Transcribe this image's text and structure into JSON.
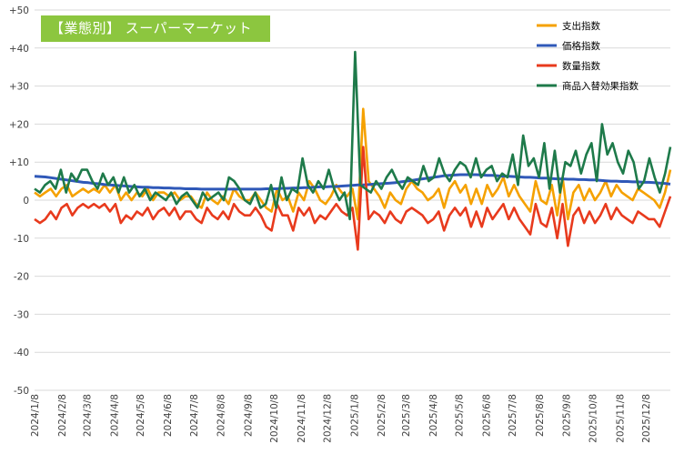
{
  "title": "【業態別】 スーパーマーケット",
  "chart_data": {
    "type": "line",
    "title": "【業態別】 スーパーマーケット",
    "ylim": [
      -50,
      50
    ],
    "y_ticks": [
      {
        "value": 50,
        "label": "+50"
      },
      {
        "value": 40,
        "label": "+40"
      },
      {
        "value": 30,
        "label": "+30"
      },
      {
        "value": 20,
        "label": "+20"
      },
      {
        "value": 10,
        "label": "+10"
      },
      {
        "value": 0,
        "label": "0"
      },
      {
        "value": -10,
        "label": "-10"
      },
      {
        "value": -20,
        "label": "-20"
      },
      {
        "value": -30,
        "label": "-30"
      },
      {
        "value": -40,
        "label": "-40"
      },
      {
        "value": -50,
        "label": "-50"
      }
    ],
    "x_tick_labels": [
      "2024/1/8",
      "2024/2/8",
      "2024/3/8",
      "2024/4/8",
      "2024/5/8",
      "2024/6/8",
      "2024/7/8",
      "2024/8/8",
      "2024/9/8",
      "2024/10/8",
      "2024/11/8",
      "2024/12/8",
      "2025/1/8",
      "2025/2/8",
      "2025/3/8",
      "2025/4/8",
      "2025/5/8",
      "2025/6/8",
      "2025/7/8",
      "2025/8/8",
      "2025/9/8",
      "2025/10/8",
      "2025/11/8",
      "2025/12/8"
    ],
    "x_start": "2024-01-08",
    "x_end": "2026-01-05",
    "grid": true,
    "legend_position": "top-right",
    "series": [
      {
        "name": "支出指数",
        "color": "#f5a100",
        "values": [
          2,
          1,
          2,
          3,
          1,
          3,
          4,
          1,
          2,
          3,
          2,
          3,
          2,
          4,
          2,
          4,
          0,
          2,
          0,
          2,
          1,
          3,
          0,
          2,
          2,
          1,
          2,
          0,
          1,
          1,
          -1,
          -2,
          2,
          0,
          -1,
          1,
          -1,
          3,
          1,
          0,
          0,
          2,
          0,
          -2,
          -3,
          3,
          0,
          1,
          -3,
          2,
          0,
          5,
          3,
          0,
          -1,
          1,
          4,
          2,
          1,
          3,
          -5,
          24,
          5,
          3,
          1,
          -2,
          2,
          0,
          -1,
          3,
          5,
          3,
          2,
          0,
          1,
          3,
          -2,
          3,
          5,
          2,
          4,
          -1,
          3,
          -1,
          4,
          1,
          3,
          6,
          1,
          4,
          1,
          -1,
          -3,
          5,
          0,
          -1,
          4,
          -4,
          6,
          -5,
          2,
          4,
          0,
          3,
          0,
          2,
          5,
          1,
          4,
          2,
          1,
          0,
          3,
          2,
          1,
          0,
          -2,
          2,
          8
        ]
      },
      {
        "name": "価格指数",
        "color": "#2f58b8",
        "values": [
          6.3,
          6.2,
          6.1,
          5.9,
          5.7,
          5.5,
          5.3,
          5.1,
          4.9,
          4.7,
          4.6,
          4.4,
          4.3,
          4.1,
          4.0,
          3.9,
          3.8,
          3.7,
          3.6,
          3.5,
          3.4,
          3.4,
          3.3,
          3.3,
          3.2,
          3.2,
          3.1,
          3.1,
          3.0,
          3.0,
          3.0,
          2.9,
          2.9,
          2.9,
          2.9,
          2.9,
          2.9,
          2.9,
          2.9,
          2.9,
          2.9,
          2.9,
          2.9,
          3.0,
          3.0,
          3.0,
          3.1,
          3.1,
          3.2,
          3.2,
          3.3,
          3.3,
          3.4,
          3.5,
          3.5,
          3.6,
          3.6,
          3.7,
          3.8,
          3.9,
          4.0,
          4.0,
          4.1,
          4.2,
          4.3,
          4.4,
          4.5,
          4.6,
          4.8,
          5.0,
          5.2,
          5.4,
          5.6,
          5.8,
          6.0,
          6.2,
          6.4,
          6.5,
          6.6,
          6.7,
          6.7,
          6.7,
          6.7,
          6.6,
          6.5,
          6.5,
          6.4,
          6.3,
          6.3,
          6.2,
          6.1,
          6.0,
          6.0,
          5.9,
          5.8,
          5.8,
          5.7,
          5.6,
          5.6,
          5.5,
          5.5,
          5.4,
          5.4,
          5.3,
          5.3,
          5.2,
          5.1,
          5.0,
          5.0,
          4.9,
          4.9,
          4.8,
          4.8,
          4.7,
          4.7,
          4.6,
          4.5,
          4.4,
          4.2
        ]
      },
      {
        "name": "数量指数",
        "color": "#e83a1d",
        "values": [
          -5,
          -6,
          -5,
          -3,
          -5,
          -2,
          -1,
          -4,
          -2,
          -1,
          -2,
          -1,
          -2,
          -1,
          -3,
          -1,
          -6,
          -4,
          -5,
          -3,
          -4,
          -2,
          -5,
          -3,
          -2,
          -4,
          -2,
          -5,
          -3,
          -3,
          -5,
          -6,
          -2,
          -4,
          -5,
          -3,
          -5,
          -1,
          -3,
          -4,
          -4,
          -2,
          -4,
          -7,
          -8,
          -1,
          -4,
          -4,
          -8,
          -2,
          -4,
          -2,
          -6,
          -4,
          -5,
          -3,
          -1,
          -3,
          -4,
          -2,
          -13,
          14,
          -5,
          -3,
          -4,
          -6,
          -3,
          -5,
          -6,
          -3,
          -2,
          -3,
          -4,
          -6,
          -5,
          -3,
          -8,
          -4,
          -2,
          -4,
          -2,
          -7,
          -3,
          -7,
          -2,
          -5,
          -3,
          -1,
          -5,
          -2,
          -5,
          -7,
          -9,
          -1,
          -6,
          -7,
          -2,
          -10,
          -1,
          -12,
          -4,
          -2,
          -6,
          -3,
          -6,
          -4,
          -1,
          -5,
          -2,
          -4,
          -5,
          -6,
          -3,
          -4,
          -5,
          -5,
          -7,
          -3,
          1
        ]
      },
      {
        "name": "商品入替効果指数",
        "color": "#1e7a4a",
        "values": [
          3,
          2,
          4,
          5,
          3,
          8,
          2,
          7,
          5,
          8,
          8,
          5,
          3,
          7,
          4,
          6,
          2,
          6,
          2,
          4,
          1,
          3,
          0,
          2,
          1,
          0,
          2,
          -1,
          1,
          2,
          0,
          -2,
          2,
          0,
          1,
          2,
          0,
          6,
          5,
          3,
          0,
          -1,
          2,
          -2,
          -1,
          4,
          -2,
          6,
          0,
          3,
          2,
          11,
          4,
          2,
          5,
          3,
          8,
          3,
          0,
          2,
          -5,
          39,
          4,
          3,
          2,
          5,
          3,
          6,
          8,
          5,
          3,
          6,
          5,
          4,
          9,
          5,
          6,
          11,
          7,
          5,
          8,
          10,
          9,
          6,
          11,
          6,
          8,
          9,
          5,
          7,
          6,
          12,
          4,
          17,
          9,
          11,
          6,
          15,
          3,
          13,
          2,
          10,
          9,
          13,
          7,
          12,
          15,
          5,
          20,
          12,
          15,
          10,
          7,
          13,
          10,
          3,
          5,
          11,
          6,
          2,
          7,
          14
        ]
      }
    ]
  }
}
